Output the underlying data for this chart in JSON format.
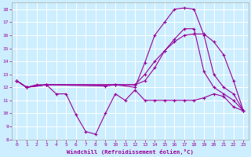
{
  "xlabel": "Windchill (Refroidissement éolien,°C)",
  "bg_color": "#cceeff",
  "grid_color": "#ffffff",
  "line_color": "#990099",
  "xlim": [
    -0.5,
    23.5
  ],
  "ylim": [
    8,
    18.5
  ],
  "yticks": [
    8,
    9,
    10,
    11,
    12,
    13,
    14,
    15,
    16,
    17,
    18
  ],
  "xticks": [
    0,
    1,
    2,
    3,
    4,
    5,
    6,
    7,
    8,
    9,
    10,
    11,
    12,
    13,
    14,
    15,
    16,
    17,
    18,
    19,
    20,
    21,
    22,
    23
  ],
  "lines": [
    {
      "x": [
        0,
        1,
        2,
        3,
        4,
        5,
        6,
        7,
        8,
        9,
        10,
        11,
        12,
        13,
        14,
        15,
        16,
        17,
        18,
        19,
        20,
        21,
        22,
        23
      ],
      "y": [
        12.5,
        12.0,
        12.2,
        12.2,
        11.5,
        11.5,
        9.9,
        8.6,
        8.4,
        10.0,
        11.5,
        11.0,
        11.8,
        11.0,
        11.0,
        11.0,
        11.0,
        11.0,
        11.0,
        11.2,
        11.5,
        11.3,
        10.5,
        10.2
      ]
    },
    {
      "x": [
        0,
        1,
        3,
        10,
        12,
        13,
        14,
        15,
        16,
        17,
        18,
        19,
        20,
        21,
        22,
        23
      ],
      "y": [
        12.5,
        12.0,
        12.2,
        12.2,
        12.2,
        13.0,
        14.0,
        14.8,
        15.5,
        16.0,
        16.1,
        16.1,
        15.5,
        14.5,
        12.5,
        10.2
      ]
    },
    {
      "x": [
        0,
        1,
        3,
        10,
        12,
        13,
        14,
        15,
        16,
        17,
        18,
        19,
        20,
        21,
        22,
        23
      ],
      "y": [
        12.5,
        12.0,
        12.2,
        12.2,
        12.2,
        12.5,
        13.5,
        14.8,
        15.7,
        16.5,
        16.5,
        13.2,
        12.0,
        11.5,
        11.0,
        10.2
      ]
    },
    {
      "x": [
        0,
        1,
        3,
        9,
        10,
        12,
        13,
        14,
        15,
        16,
        17,
        18,
        19,
        20,
        21,
        22,
        23
      ],
      "y": [
        12.5,
        12.0,
        12.2,
        12.1,
        12.2,
        12.0,
        13.9,
        16.0,
        17.0,
        18.0,
        18.1,
        18.0,
        16.0,
        13.0,
        12.0,
        11.5,
        10.2
      ]
    }
  ]
}
